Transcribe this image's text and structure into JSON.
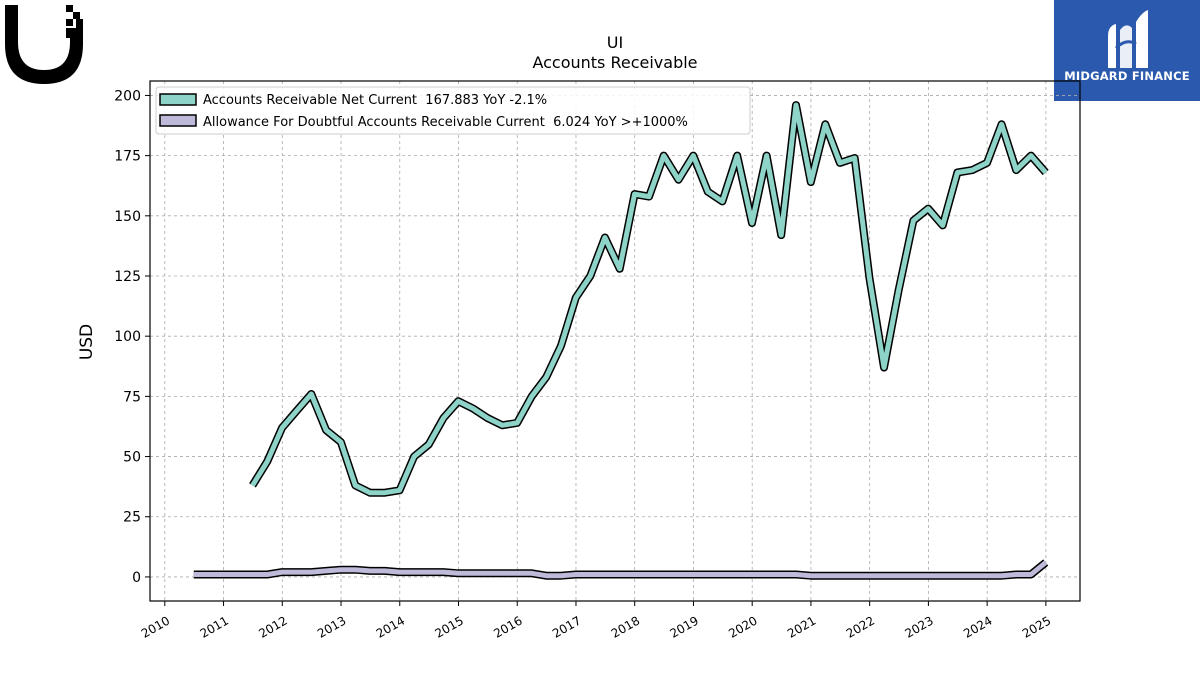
{
  "brand": {
    "ticker_logo": "ubiquiti-u-logo",
    "badge_name": "MIDGARD FINANCE",
    "badge_color": "#2b59ad"
  },
  "chart_data": {
    "type": "line",
    "title": "UI",
    "subtitle": "Accounts Receivable",
    "xlabel": "",
    "ylabel": "USD",
    "xlim": [
      "2009-10-01",
      "2025-08-01"
    ],
    "ylim": [
      -10,
      206
    ],
    "yticks": [
      0,
      25,
      50,
      75,
      100,
      125,
      150,
      175,
      200
    ],
    "xticks": [
      "2010",
      "2011",
      "2012",
      "2013",
      "2014",
      "2015",
      "2016",
      "2017",
      "2018",
      "2019",
      "2020",
      "2021",
      "2022",
      "2023",
      "2024",
      "2025"
    ],
    "grid": true,
    "legend_position": "top-left",
    "series": [
      {
        "name": "Accounts Receivable Net Current  167.883 YoY -2.1%",
        "color": "#8dd3c7",
        "points": [
          [
            "2011-06-30",
            38
          ],
          [
            "2011-09-30",
            48
          ],
          [
            "2011-12-31",
            62
          ],
          [
            "2012-03-31",
            69
          ],
          [
            "2012-06-30",
            76
          ],
          [
            "2012-09-30",
            61
          ],
          [
            "2012-12-31",
            56
          ],
          [
            "2013-03-31",
            38
          ],
          [
            "2013-06-30",
            35
          ],
          [
            "2013-09-30",
            35
          ],
          [
            "2013-12-31",
            36
          ],
          [
            "2014-03-31",
            50
          ],
          [
            "2014-06-30",
            55
          ],
          [
            "2014-09-30",
            66
          ],
          [
            "2014-12-31",
            73
          ],
          [
            "2015-03-31",
            70
          ],
          [
            "2015-06-30",
            66
          ],
          [
            "2015-09-30",
            63
          ],
          [
            "2015-12-31",
            64
          ],
          [
            "2016-03-31",
            75
          ],
          [
            "2016-06-30",
            83
          ],
          [
            "2016-09-30",
            96
          ],
          [
            "2016-12-31",
            116
          ],
          [
            "2017-03-31",
            125
          ],
          [
            "2017-06-30",
            141
          ],
          [
            "2017-09-30",
            128
          ],
          [
            "2017-12-31",
            159
          ],
          [
            "2018-03-31",
            158
          ],
          [
            "2018-06-30",
            175
          ],
          [
            "2018-09-30",
            165
          ],
          [
            "2018-12-31",
            175
          ],
          [
            "2019-03-31",
            160
          ],
          [
            "2019-06-30",
            156
          ],
          [
            "2019-09-30",
            175
          ],
          [
            "2019-12-31",
            147
          ],
          [
            "2020-03-31",
            175
          ],
          [
            "2020-06-30",
            142
          ],
          [
            "2020-09-30",
            196
          ],
          [
            "2020-12-31",
            164
          ],
          [
            "2021-03-31",
            188
          ],
          [
            "2021-06-30",
            172
          ],
          [
            "2021-09-30",
            174
          ],
          [
            "2021-12-31",
            124
          ],
          [
            "2022-03-31",
            87
          ],
          [
            "2022-06-30",
            119
          ],
          [
            "2022-09-30",
            148
          ],
          [
            "2022-12-31",
            153
          ],
          [
            "2023-03-31",
            146
          ],
          [
            "2023-06-30",
            168
          ],
          [
            "2023-09-30",
            169
          ],
          [
            "2023-12-31",
            172
          ],
          [
            "2024-03-31",
            188
          ],
          [
            "2024-06-30",
            169
          ],
          [
            "2024-09-30",
            175
          ],
          [
            "2024-12-31",
            168
          ]
        ]
      },
      {
        "name": "Allowance For Doubtful Accounts Receivable Current  6.024 YoY >+1000%",
        "color": "#bebada",
        "points": [
          [
            "2010-06-30",
            1
          ],
          [
            "2010-09-30",
            1
          ],
          [
            "2010-12-31",
            1
          ],
          [
            "2011-03-31",
            1
          ],
          [
            "2011-06-30",
            1
          ],
          [
            "2011-09-30",
            1
          ],
          [
            "2011-12-31",
            2
          ],
          [
            "2012-03-31",
            2
          ],
          [
            "2012-06-30",
            2
          ],
          [
            "2012-09-30",
            2.5
          ],
          [
            "2012-12-31",
            3
          ],
          [
            "2013-03-31",
            3
          ],
          [
            "2013-06-30",
            2.5
          ],
          [
            "2013-09-30",
            2.5
          ],
          [
            "2013-12-31",
            2
          ],
          [
            "2014-03-31",
            2
          ],
          [
            "2014-06-30",
            2
          ],
          [
            "2014-09-30",
            2
          ],
          [
            "2014-12-31",
            1.5
          ],
          [
            "2015-03-31",
            1.5
          ],
          [
            "2015-06-30",
            1.5
          ],
          [
            "2015-09-30",
            1.5
          ],
          [
            "2015-12-31",
            1.5
          ],
          [
            "2016-03-31",
            1.5
          ],
          [
            "2016-06-30",
            0.5
          ],
          [
            "2016-09-30",
            0.5
          ],
          [
            "2016-12-31",
            1
          ],
          [
            "2017-03-31",
            1
          ],
          [
            "2017-06-30",
            1
          ],
          [
            "2017-09-30",
            1
          ],
          [
            "2017-12-31",
            1
          ],
          [
            "2018-03-31",
            1
          ],
          [
            "2018-06-30",
            1
          ],
          [
            "2018-09-30",
            1
          ],
          [
            "2018-12-31",
            1
          ],
          [
            "2019-03-31",
            1
          ],
          [
            "2019-06-30",
            1
          ],
          [
            "2019-09-30",
            1
          ],
          [
            "2019-12-31",
            1
          ],
          [
            "2020-03-31",
            1
          ],
          [
            "2020-06-30",
            1
          ],
          [
            "2020-09-30",
            1
          ],
          [
            "2020-12-31",
            0.5
          ],
          [
            "2021-03-31",
            0.5
          ],
          [
            "2021-06-30",
            0.5
          ],
          [
            "2021-09-30",
            0.5
          ],
          [
            "2021-12-31",
            0.5
          ],
          [
            "2022-03-31",
            0.5
          ],
          [
            "2022-06-30",
            0.5
          ],
          [
            "2022-09-30",
            0.5
          ],
          [
            "2022-12-31",
            0.5
          ],
          [
            "2023-03-31",
            0.5
          ],
          [
            "2023-06-30",
            0.5
          ],
          [
            "2023-09-30",
            0.5
          ],
          [
            "2023-12-31",
            0.5
          ],
          [
            "2024-03-31",
            0.5
          ],
          [
            "2024-06-30",
            1
          ],
          [
            "2024-09-30",
            1
          ],
          [
            "2024-12-31",
            6
          ]
        ]
      }
    ]
  }
}
